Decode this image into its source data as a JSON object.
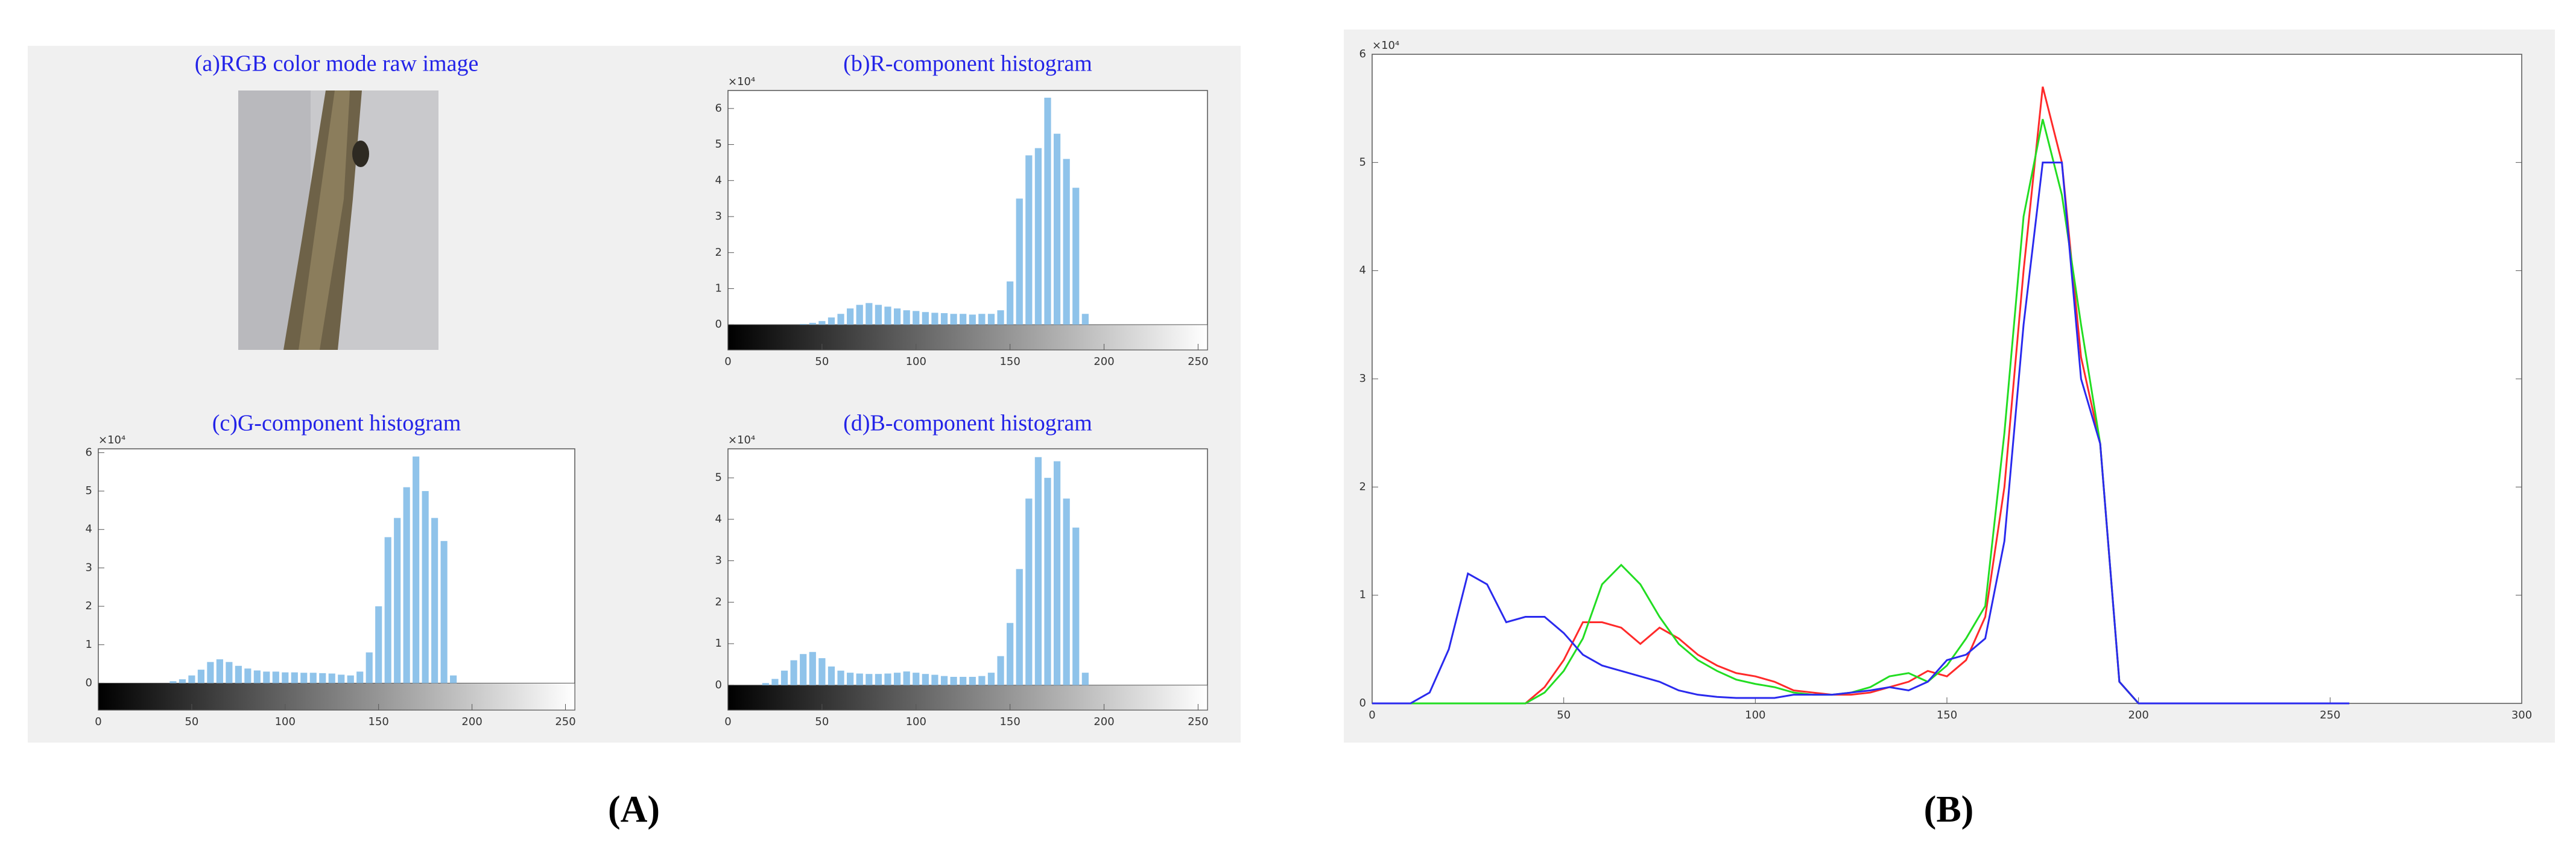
{
  "image_panel": {
    "title": "(a)RGB color mode raw image"
  },
  "captions": [
    "(A)",
    "(B)"
  ],
  "chart_data": [
    {
      "type": "bar",
      "title": "(b)R-component histogram",
      "y_multiplier": "×10⁴",
      "color": "#8fc3ea",
      "x": [
        0,
        5,
        10,
        15,
        20,
        25,
        30,
        35,
        40,
        45,
        50,
        55,
        60,
        65,
        70,
        75,
        80,
        85,
        90,
        95,
        100,
        105,
        110,
        115,
        120,
        125,
        130,
        135,
        140,
        145,
        150,
        155,
        160,
        165,
        170,
        175,
        180,
        185,
        190,
        195,
        200,
        205,
        210,
        215,
        220,
        225,
        230,
        235,
        240,
        245,
        250,
        255
      ],
      "values": [
        0,
        0,
        0,
        0,
        0,
        0,
        0,
        0,
        0.02,
        0.05,
        0.1,
        0.2,
        0.3,
        0.45,
        0.55,
        0.6,
        0.55,
        0.5,
        0.45,
        0.4,
        0.38,
        0.35,
        0.33,
        0.32,
        0.3,
        0.3,
        0.28,
        0.3,
        0.3,
        0.4,
        1.2,
        3.5,
        4.7,
        4.9,
        6.3,
        5.3,
        4.6,
        3.8,
        0.3,
        0,
        0,
        0,
        0,
        0,
        0,
        0,
        0,
        0,
        0,
        0,
        0,
        0
      ],
      "xlim": [
        0,
        255
      ],
      "xticks": [
        0,
        50,
        100,
        150,
        200,
        250
      ],
      "ylim": [
        -0.7,
        6.5
      ],
      "yticks": [
        0,
        1,
        2,
        3,
        4,
        5,
        6
      ]
    },
    {
      "type": "bar",
      "title": "(c)G-component histogram",
      "y_multiplier": "×10⁴",
      "color": "#8fc3ea",
      "x": [
        0,
        5,
        10,
        15,
        20,
        25,
        30,
        35,
        40,
        45,
        50,
        55,
        60,
        65,
        70,
        75,
        80,
        85,
        90,
        95,
        100,
        105,
        110,
        115,
        120,
        125,
        130,
        135,
        140,
        145,
        150,
        155,
        160,
        165,
        170,
        175,
        180,
        185,
        190,
        195,
        200,
        205,
        210,
        215,
        220,
        225,
        230,
        235,
        240,
        245,
        250,
        255
      ],
      "values": [
        0,
        0,
        0,
        0,
        0,
        0,
        0,
        0,
        0.05,
        0.1,
        0.2,
        0.35,
        0.55,
        0.62,
        0.55,
        0.45,
        0.38,
        0.33,
        0.3,
        0.3,
        0.28,
        0.28,
        0.27,
        0.27,
        0.26,
        0.25,
        0.22,
        0.2,
        0.3,
        0.8,
        2.0,
        3.8,
        4.3,
        5.1,
        5.9,
        5.0,
        4.3,
        3.7,
        0.2,
        0,
        0,
        0,
        0,
        0,
        0,
        0,
        0,
        0,
        0,
        0,
        0,
        0
      ],
      "xlim": [
        0,
        255
      ],
      "xticks": [
        0,
        50,
        100,
        150,
        200,
        250
      ],
      "ylim": [
        -0.7,
        6.1
      ],
      "yticks": [
        0,
        1,
        2,
        3,
        4,
        5,
        6
      ]
    },
    {
      "type": "bar",
      "title": "(d)B-component histogram",
      "y_multiplier": "×10⁴",
      "color": "#8fc3ea",
      "x": [
        0,
        5,
        10,
        15,
        20,
        25,
        30,
        35,
        40,
        45,
        50,
        55,
        60,
        65,
        70,
        75,
        80,
        85,
        90,
        95,
        100,
        105,
        110,
        115,
        120,
        125,
        130,
        135,
        140,
        145,
        150,
        155,
        160,
        165,
        170,
        175,
        180,
        185,
        190,
        195,
        200,
        205,
        210,
        215,
        220,
        225,
        230,
        235,
        240,
        245,
        250,
        255
      ],
      "values": [
        0,
        0,
        0,
        0,
        0.05,
        0.15,
        0.35,
        0.6,
        0.75,
        0.8,
        0.65,
        0.45,
        0.35,
        0.3,
        0.28,
        0.27,
        0.27,
        0.28,
        0.3,
        0.33,
        0.3,
        0.27,
        0.25,
        0.22,
        0.2,
        0.2,
        0.2,
        0.22,
        0.3,
        0.7,
        1.5,
        2.8,
        4.5,
        5.5,
        5.0,
        5.4,
        4.5,
        3.8,
        0.3,
        0,
        0,
        0,
        0,
        0,
        0,
        0,
        0,
        0,
        0,
        0,
        0,
        0
      ],
      "xlim": [
        0,
        255
      ],
      "xticks": [
        0,
        50,
        100,
        150,
        200,
        250
      ],
      "ylim": [
        -0.6,
        5.7
      ],
      "yticks": [
        0,
        1,
        2,
        3,
        4,
        5
      ]
    },
    {
      "type": "line",
      "y_multiplier": "×10⁴",
      "x": [
        0,
        5,
        10,
        15,
        20,
        25,
        30,
        35,
        40,
        45,
        50,
        55,
        60,
        65,
        70,
        75,
        80,
        85,
        90,
        95,
        100,
        105,
        110,
        115,
        120,
        125,
        130,
        135,
        140,
        145,
        150,
        155,
        160,
        165,
        170,
        175,
        180,
        185,
        190,
        195,
        200,
        205,
        210,
        215,
        220,
        225,
        230,
        235,
        240,
        245,
        250,
        255
      ],
      "series": [
        {
          "color": "#ff2a2a",
          "values": [
            0,
            0,
            0,
            0,
            0,
            0,
            0,
            0,
            0,
            0.15,
            0.4,
            0.75,
            0.75,
            0.7,
            0.55,
            0.7,
            0.6,
            0.45,
            0.35,
            0.28,
            0.25,
            0.2,
            0.12,
            0.1,
            0.08,
            0.08,
            0.1,
            0.15,
            0.2,
            0.3,
            0.25,
            0.4,
            0.8,
            2.0,
            4.0,
            5.7,
            5.0,
            3.2,
            2.4,
            0.2,
            0,
            0,
            0,
            0,
            0,
            0,
            0,
            0,
            0,
            0,
            0,
            0
          ]
        },
        {
          "color": "#22dd22",
          "values": [
            0,
            0,
            0,
            0,
            0,
            0,
            0,
            0,
            0,
            0.1,
            0.3,
            0.6,
            1.1,
            1.28,
            1.1,
            0.8,
            0.55,
            0.4,
            0.3,
            0.22,
            0.18,
            0.15,
            0.1,
            0.08,
            0.08,
            0.1,
            0.15,
            0.25,
            0.28,
            0.2,
            0.35,
            0.6,
            0.9,
            2.5,
            4.5,
            5.4,
            4.7,
            3.5,
            2.4,
            0.2,
            0,
            0,
            0,
            0,
            0,
            0,
            0,
            0,
            0,
            0,
            0,
            0
          ]
        },
        {
          "color": "#2a2aee",
          "values": [
            0,
            0,
            0,
            0.1,
            0.5,
            1.2,
            1.1,
            0.75,
            0.8,
            0.8,
            0.65,
            0.45,
            0.35,
            0.3,
            0.25,
            0.2,
            0.12,
            0.08,
            0.06,
            0.05,
            0.05,
            0.05,
            0.08,
            0.08,
            0.08,
            0.1,
            0.12,
            0.15,
            0.12,
            0.2,
            0.4,
            0.45,
            0.6,
            1.5,
            3.5,
            5.0,
            5.0,
            3.0,
            2.4,
            0.2,
            0,
            0,
            0,
            0,
            0,
            0,
            0,
            0,
            0,
            0,
            0,
            0
          ]
        }
      ],
      "xlim": [
        0,
        300
      ],
      "xticks": [
        0,
        50,
        100,
        150,
        200,
        250,
        300
      ],
      "ylim": [
        0,
        6
      ],
      "yticks": [
        0,
        1,
        2,
        3,
        4,
        5,
        6
      ]
    }
  ]
}
